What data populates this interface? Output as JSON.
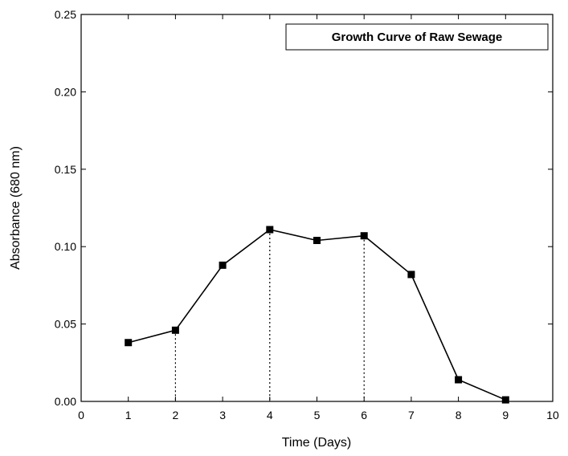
{
  "chart_data": {
    "type": "line",
    "title": "Growth Curve of Raw Sewage",
    "legend_placement": "top-right",
    "xlabel": "Time (Days)",
    "ylabel": "Absorbance (680 nm)",
    "xlim": [
      0,
      10
    ],
    "ylim": [
      0,
      0.25
    ],
    "x_ticks": [
      "0",
      "1",
      "2",
      "3",
      "4",
      "5",
      "6",
      "7",
      "8",
      "9",
      "10"
    ],
    "y_ticks": [
      "0.00",
      "0.05",
      "0.10",
      "0.15",
      "0.20",
      "0.25"
    ],
    "grid": false,
    "series": [
      {
        "x": [
          1,
          2,
          3,
          4,
          5,
          6,
          7,
          8,
          9
        ],
        "y": [
          0.038,
          0.046,
          0.088,
          0.111,
          0.104,
          0.107,
          0.082,
          0.014,
          0.001
        ],
        "marker": "square",
        "color": "#000000"
      }
    ],
    "dotted_reference_x": [
      2,
      4,
      6
    ]
  }
}
